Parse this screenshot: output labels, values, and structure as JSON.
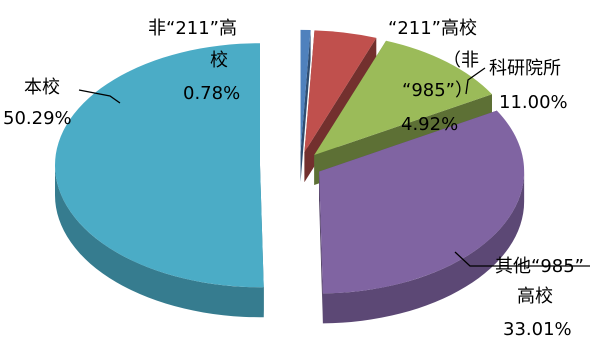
{
  "chart_data": {
    "type": "pie",
    "title": "",
    "slices": [
      {
        "name": "非“211”高校",
        "value": 0.78,
        "value_label": "0.78%",
        "color": "#4f81bd"
      },
      {
        "name": "“211”高校（非“985”）",
        "value": 4.92,
        "value_label": "4.92%",
        "color": "#c0504d"
      },
      {
        "name": "科研院所",
        "value": 11.0,
        "value_label": "11.00%",
        "color": "#9bbb59"
      },
      {
        "name": "其他“985”高校",
        "value": 33.01,
        "value_label": "33.01%",
        "color": "#8064a2"
      },
      {
        "name": "本校",
        "value": 50.29,
        "value_label": "50.29%",
        "color": "#4bacc6"
      }
    ],
    "labels": {
      "s0_line1": "非“211”高",
      "s0_line2": "校",
      "s0_value": "0.78%",
      "s1_line1": "“211”高校",
      "s1_line2": "（非",
      "s1_line3": "“985”）",
      "s1_value": "4.92%",
      "s2_line1": "科研院所",
      "s2_value": "11.00%",
      "s3_line1": "其他“985”",
      "s3_line2": "高校",
      "s3_value": "33.01%",
      "s4_line1": "本校",
      "s4_value": "50.29%"
    }
  }
}
